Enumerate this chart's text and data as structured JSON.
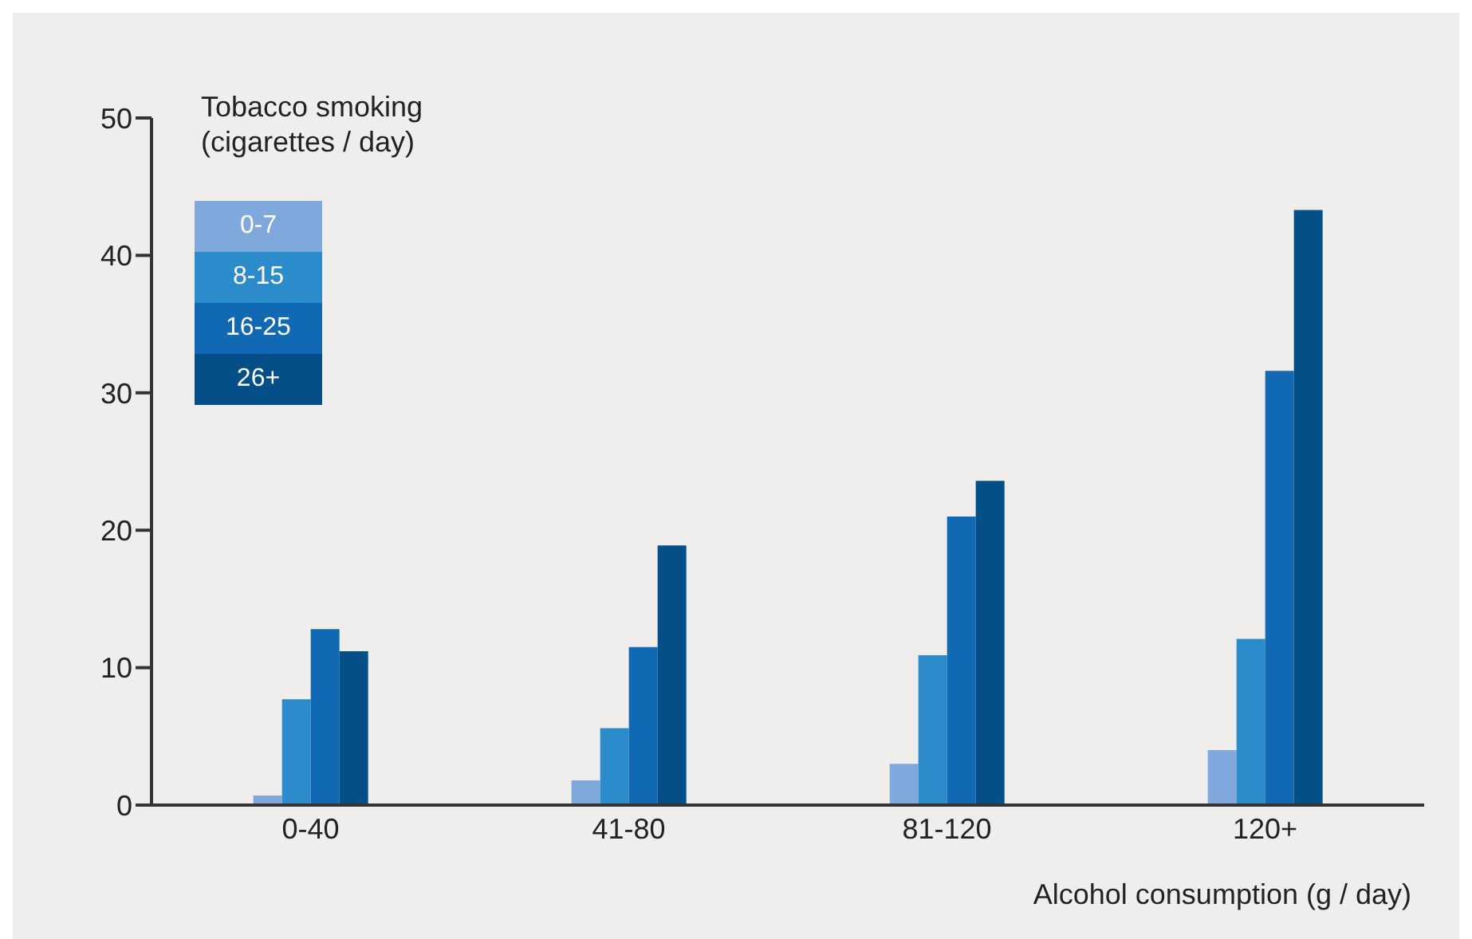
{
  "chart_data": {
    "type": "bar",
    "xlabel": "Alcohol consumption (g / day)",
    "legend_title": "Tobacco smoking\n(cigarettes / day)",
    "categories": [
      "0-40",
      "41-80",
      "81-120",
      "120+"
    ],
    "series": [
      {
        "name": "0-7",
        "color": "#7fa9dc",
        "values": [
          0.7,
          1.8,
          3.0,
          4.0
        ]
      },
      {
        "name": "8-15",
        "color": "#2b8bcb",
        "values": [
          7.7,
          5.6,
          10.9,
          12.1
        ]
      },
      {
        "name": "16-25",
        "color": "#1169b3",
        "values": [
          12.8,
          11.5,
          21.0,
          31.6
        ]
      },
      {
        "name": "26+",
        "color": "#044f87",
        "values": [
          11.2,
          18.9,
          23.6,
          43.3
        ]
      }
    ],
    "ylim": [
      0,
      50
    ],
    "yticks": [
      0,
      10,
      20,
      30,
      40,
      50
    ],
    "grid": false,
    "legend": "top left"
  }
}
